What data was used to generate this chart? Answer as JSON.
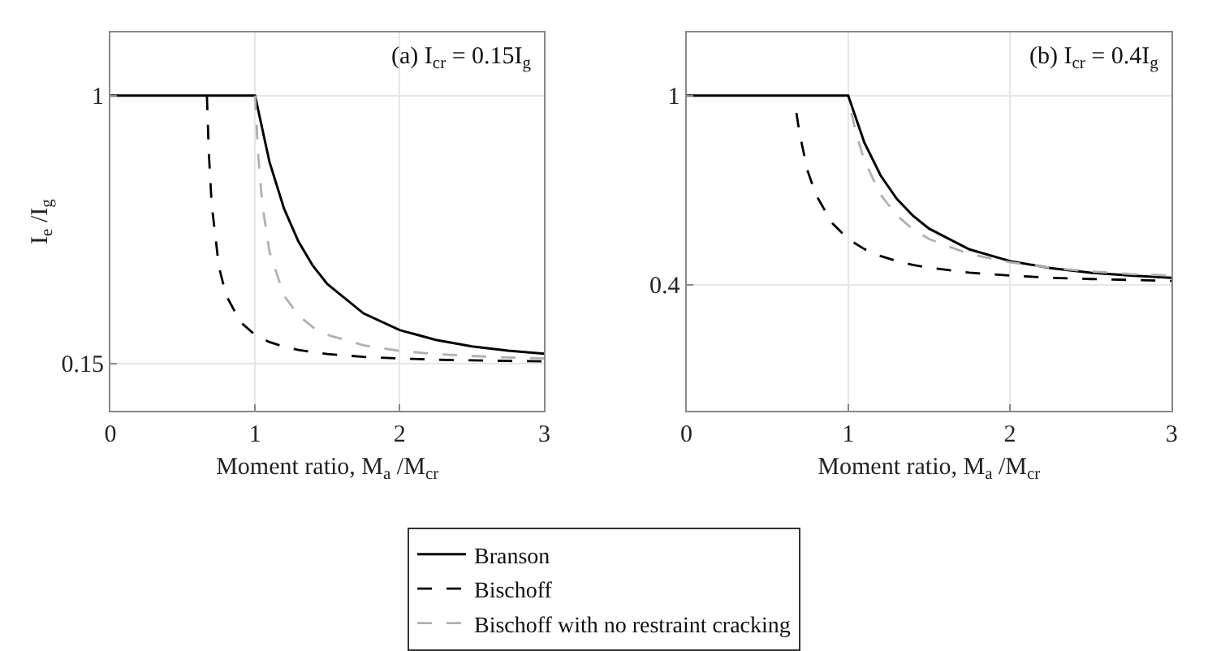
{
  "chart_data": [
    {
      "type": "line",
      "title": "(a) I$_{cr}$ = 0.15I$_{g}$",
      "xlabel": "Moment ratio, M$_{a}$ /M$_{cr}$",
      "ylabel": "I$_{e}$ /I$_{g}$",
      "xlim": [
        0,
        3
      ],
      "xticks": [
        0,
        1,
        2,
        3
      ],
      "ylim": [
        0,
        1.2
      ],
      "yticks": [
        0.15,
        1
      ],
      "grid": true,
      "legend": "bottom",
      "marker": "none",
      "series": [
        {
          "name": "Branson",
          "color": "#000000",
          "line_style": "solid",
          "x": [
            0,
            1,
            1.1,
            1.2,
            1.3,
            1.4,
            1.5,
            1.75,
            2,
            2.25,
            2.5,
            2.75,
            3
          ],
          "values": [
            1,
            1,
            0.789,
            0.642,
            0.537,
            0.46,
            0.402,
            0.309,
            0.256,
            0.225,
            0.204,
            0.191,
            0.181
          ]
        },
        {
          "name": "Bischoff",
          "color": "#000000",
          "line_style": "dashed",
          "x": [
            0.667,
            0.68,
            0.7,
            0.75,
            0.8,
            0.9,
            1,
            1.1,
            1.2,
            1.3,
            1.4,
            1.5,
            1.75,
            2,
            2.25,
            2.5,
            2.75,
            3
          ],
          "values": [
            1,
            0.82,
            0.655,
            0.457,
            0.366,
            0.281,
            0.241,
            0.218,
            0.203,
            0.193,
            0.186,
            0.18,
            0.171,
            0.166,
            0.162,
            0.16,
            0.158,
            0.157
          ]
        },
        {
          "name": "Bischoff with no restraint cracking",
          "color": "#b0b0b0",
          "line_style": "dashed",
          "x": [
            1,
            1.02,
            1.05,
            1.1,
            1.2,
            1.3,
            1.4,
            1.5,
            1.75,
            2,
            2.25,
            2.5,
            2.75,
            3
          ],
          "values": [
            1,
            0.82,
            0.655,
            0.504,
            0.366,
            0.302,
            0.265,
            0.241,
            0.208,
            0.19,
            0.18,
            0.174,
            0.169,
            0.166
          ]
        }
      ]
    },
    {
      "type": "line",
      "title": "(b) I$_{cr}$ = 0.4I$_{g}$",
      "xlabel": "Moment ratio, M$_{a}$ /M$_{cr}$",
      "xlim": [
        0,
        3
      ],
      "xticks": [
        0,
        1,
        2,
        3
      ],
      "ylim": [
        0,
        1.2
      ],
      "yticks": [
        0.4,
        1
      ],
      "grid": true,
      "marker": "none",
      "series": [
        {
          "color": "#000000",
          "line_style": "solid",
          "x": [
            0,
            1,
            1.1,
            1.2,
            1.3,
            1.4,
            1.5,
            1.75,
            2,
            2.25,
            2.5,
            2.75,
            3
          ],
          "values": [
            1,
            1,
            0.851,
            0.747,
            0.673,
            0.619,
            0.578,
            0.512,
            0.475,
            0.453,
            0.438,
            0.429,
            0.422
          ]
        },
        {
          "color": "#000000",
          "line_style": "dashed",
          "x": [
            0.68,
            0.7,
            0.75,
            0.8,
            0.9,
            1,
            1.1,
            1.2,
            1.3,
            1.4,
            1.5,
            1.75,
            2,
            2.25,
            2.5,
            2.75,
            3
          ],
          "values": [
            0.945,
            0.878,
            0.76,
            0.686,
            0.596,
            0.545,
            0.513,
            0.491,
            0.475,
            0.463,
            0.454,
            0.438,
            0.429,
            0.422,
            0.418,
            0.415,
            0.412
          ]
        },
        {
          "color": "#b0b0b0",
          "line_style": "dashed",
          "x": [
            1.02,
            1.05,
            1.1,
            1.2,
            1.3,
            1.4,
            1.5,
            1.75,
            2,
            2.25,
            2.5,
            2.75,
            3
          ],
          "values": [
            0.945,
            0.878,
            0.794,
            0.686,
            0.62,
            0.576,
            0.545,
            0.497,
            0.471,
            0.454,
            0.442,
            0.434,
            0.429
          ]
        }
      ]
    }
  ]
}
